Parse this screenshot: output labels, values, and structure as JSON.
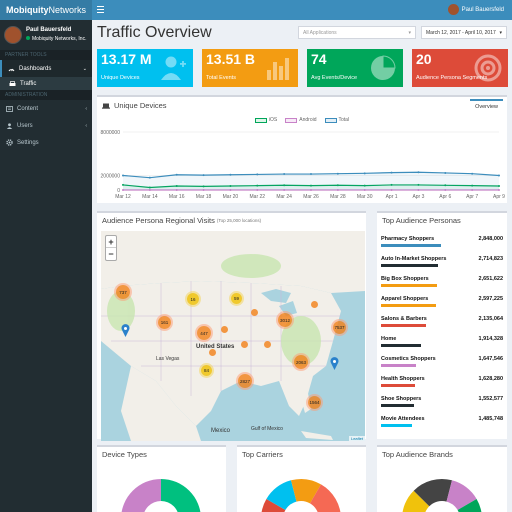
{
  "brand": {
    "logo_bold": "Mobiquity",
    "logo_light": "Networks"
  },
  "user": {
    "name": "Paul Bauersfeld",
    "org": "Mobiquity Networks, Inc."
  },
  "sidebar": {
    "section1": "Partner Tools",
    "dashboards": "Dashboards",
    "traffic": "Traffic",
    "section2": "Administration",
    "items": [
      {
        "label": "Content",
        "icon": "content-icon"
      },
      {
        "label": "Users",
        "icon": "users-icon"
      },
      {
        "label": "Settings",
        "icon": "settings-icon"
      }
    ]
  },
  "header": {
    "title": "Traffic Overview",
    "user_name": "Paul Bauersfeld"
  },
  "filters": {
    "applications": "All Applications",
    "date_range": "March 12, 2017 - April 10, 2017"
  },
  "kpis": [
    {
      "value": "13.17 M",
      "label": "Unique Devices",
      "color": "#00c0ef",
      "icon": "add-user-icon"
    },
    {
      "value": "13.51 B",
      "label": "Total Events",
      "color": "#f39c12",
      "icon": "bar-chart-icon"
    },
    {
      "value": "74",
      "label": "Avg Events/Device",
      "color": "#00a65a",
      "icon": "pie-chart-icon"
    },
    {
      "value": "20",
      "label": "Audience Persona Segments",
      "color": "#dd4b39",
      "icon": "target-icon"
    }
  ],
  "unique_devices": {
    "title": "Unique Devices",
    "tab": "Overview",
    "legend": [
      "iOS",
      "Android",
      "Total"
    ]
  },
  "chart_data": {
    "type": "line",
    "x": [
      "Mar 12",
      "Mar 14",
      "Mar 16",
      "Mar 18",
      "Mar 20",
      "Mar 22",
      "Mar 24",
      "Mar 26",
      "Mar 28",
      "Mar 30",
      "Apr 1",
      "Apr 3",
      "Apr 6",
      "Apr 7",
      "Apr 9"
    ],
    "ylim": [
      0,
      8000000
    ],
    "yticks": [
      "8000000",
      "2000000",
      "0"
    ],
    "series": [
      {
        "name": "iOS",
        "color": "#00a65a",
        "values": [
          700000,
          350000,
          550000,
          500000,
          550000,
          600000,
          650000,
          600000,
          650000,
          600000,
          700000,
          700000,
          650000,
          600000,
          550000
        ]
      },
      {
        "name": "Android",
        "color": "#c882c8",
        "values": [
          0,
          0,
          0,
          0,
          0,
          0,
          0,
          0,
          0,
          0,
          0,
          0,
          0,
          0,
          0
        ]
      },
      {
        "name": "Total",
        "color": "#3c8dbc",
        "values": [
          2000000,
          1700000,
          2100000,
          2050000,
          2100000,
          2150000,
          2200000,
          2200000,
          2250000,
          2300000,
          2400000,
          2450000,
          2350000,
          2250000,
          2000000
        ]
      }
    ]
  },
  "map": {
    "title": "Audience Persona Regional Visits",
    "subtitle": "(Top 25,000 locations)",
    "zoom_in": "+",
    "zoom_out": "−",
    "attribution": "Leaflet",
    "labels": [
      "United States",
      "Las Vegas",
      "Mexico",
      "Gulf of Mexico"
    ],
    "clusters": [
      "737",
      "16",
      "59",
      "161",
      "447",
      "3012",
      "7537",
      "2063",
      "84",
      "2827",
      "1564"
    ]
  },
  "personas": {
    "title": "Top Audience Personas",
    "rows": [
      {
        "name": "Pharmacy Shoppers",
        "value": "2,848,000",
        "color": "#3c8dbc",
        "pct": 1.0
      },
      {
        "name": "Auto In-Market Shoppers",
        "value": "2,714,823",
        "color": "#222d32",
        "pct": 0.95
      },
      {
        "name": "Big Box Shoppers",
        "value": "2,651,622",
        "color": "#f39c12",
        "pct": 0.93
      },
      {
        "name": "Apparel Shoppers",
        "value": "2,597,225",
        "color": "#f39c12",
        "pct": 0.91
      },
      {
        "name": "Salons & Barbers",
        "value": "2,135,064",
        "color": "#dd4b39",
        "pct": 0.75
      },
      {
        "name": "Home",
        "value": "1,914,328",
        "color": "#222d32",
        "pct": 0.67
      },
      {
        "name": "Cosmetics Shoppers",
        "value": "1,647,546",
        "color": "#c882c8",
        "pct": 0.58
      },
      {
        "name": "Health Shoppers",
        "value": "1,628,280",
        "color": "#dd4b39",
        "pct": 0.57
      },
      {
        "name": "Shoe Shoppers",
        "value": "1,552,577",
        "color": "#222d32",
        "pct": 0.55
      },
      {
        "name": "Movie Attendees",
        "value": "1,485,748",
        "color": "#00c0ef",
        "pct": 0.52
      }
    ]
  },
  "bottom": {
    "device_types": "Device Types",
    "carriers": "Top Carriers",
    "brands": "Top Audience Brands"
  }
}
